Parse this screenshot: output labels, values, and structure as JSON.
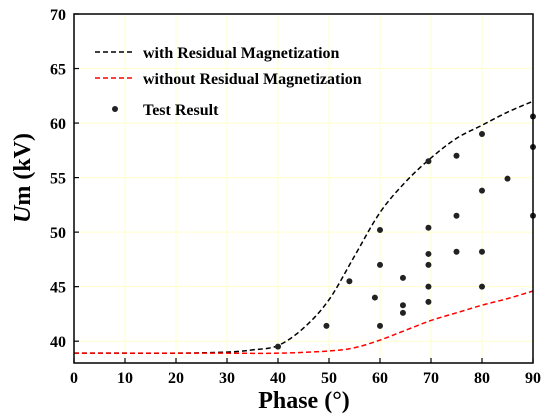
{
  "chart_data": {
    "type": "line",
    "xlabel": "Phase (°)",
    "ylabel_main": "U",
    "ylabel_sub": "m (kV)",
    "xlim": [
      0,
      90
    ],
    "ylim": [
      38,
      70
    ],
    "xticks": [
      "0",
      "10",
      "20",
      "30",
      "40",
      "50",
      "60",
      "70",
      "80",
      "90"
    ],
    "yticks": [
      "40",
      "45",
      "50",
      "55",
      "60",
      "65",
      "70"
    ],
    "grid": true,
    "grid_color": "#ffffcc",
    "legend_position": "top-left",
    "series": [
      {
        "name": "with Residual Magnetization",
        "style": "dashed",
        "color": "#000000",
        "x": [
          0,
          10,
          20,
          30,
          35,
          40,
          45,
          50,
          55,
          60,
          65,
          70,
          75,
          80,
          85,
          90
        ],
        "y": [
          38.9,
          38.9,
          38.9,
          39.0,
          39.2,
          39.6,
          41.2,
          43.8,
          47.8,
          51.8,
          54.6,
          56.8,
          58.6,
          59.8,
          61.0,
          62.0
        ]
      },
      {
        "name": "without Residual Magnetization",
        "style": "dashed",
        "color": "#ff0000",
        "x": [
          0,
          10,
          20,
          30,
          40,
          50,
          55,
          60,
          65,
          70,
          75,
          80,
          85,
          90
        ],
        "y": [
          38.9,
          38.9,
          38.9,
          38.9,
          38.9,
          39.1,
          39.4,
          40.1,
          41.0,
          41.9,
          42.6,
          43.3,
          43.9,
          44.6
        ]
      },
      {
        "name": "Test Result",
        "style": "points",
        "color": "#222222",
        "points": [
          [
            40,
            39.5
          ],
          [
            49.5,
            41.4
          ],
          [
            54,
            45.5
          ],
          [
            59,
            44.0
          ],
          [
            60,
            47.0
          ],
          [
            60,
            50.2
          ],
          [
            60,
            41.4
          ],
          [
            64.5,
            45.8
          ],
          [
            64.5,
            43.3
          ],
          [
            64.5,
            42.6
          ],
          [
            69.5,
            56.5
          ],
          [
            69.5,
            50.4
          ],
          [
            69.5,
            48.0
          ],
          [
            69.5,
            47.0
          ],
          [
            69.5,
            45.0
          ],
          [
            69.5,
            43.6
          ],
          [
            75,
            57.0
          ],
          [
            75,
            51.5
          ],
          [
            75,
            48.2
          ],
          [
            80,
            59.0
          ],
          [
            80,
            53.8
          ],
          [
            80,
            48.2
          ],
          [
            80,
            45.0
          ],
          [
            85,
            54.9
          ],
          [
            90,
            60.6
          ],
          [
            90,
            57.8
          ],
          [
            90,
            51.5
          ]
        ]
      }
    ]
  }
}
